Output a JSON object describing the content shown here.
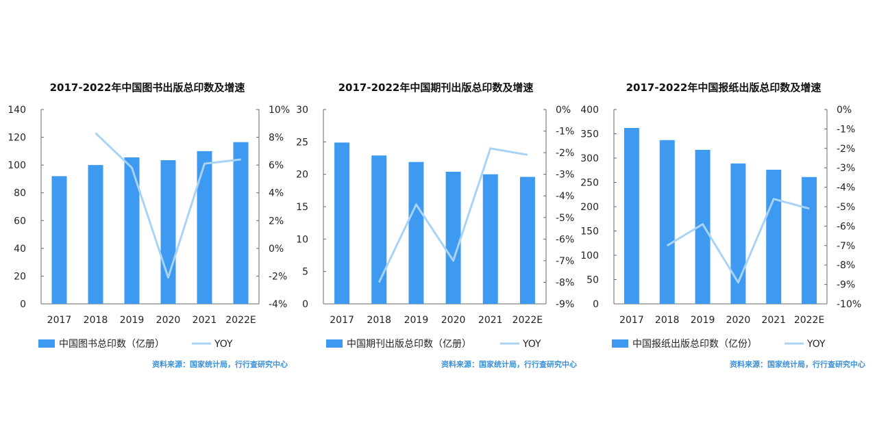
{
  "chart_data": [
    {
      "type": "bar+line",
      "title": "2017-2022年中国图书出版总印数及增速",
      "categories": [
        "2017",
        "2018",
        "2019",
        "2020",
        "2021",
        "2022E"
      ],
      "series": [
        {
          "name": "中国图书总印数（亿册）",
          "type": "bar",
          "axis": "left",
          "values": [
            92,
            100,
            105.5,
            103.5,
            110,
            116.5
          ]
        },
        {
          "name": "YOY",
          "type": "line",
          "axis": "right",
          "values": [
            null,
            8.3,
            5.8,
            -2.1,
            6.1,
            6.4
          ]
        }
      ],
      "y_left": {
        "ylim": [
          0,
          140
        ],
        "ticks": [
          "0",
          "20",
          "40",
          "60",
          "80",
          "100",
          "120",
          "140"
        ]
      },
      "y_right": {
        "ylim": [
          -4,
          10
        ],
        "ticks": [
          "-4%",
          "-2%",
          "0%",
          "2%",
          "4%",
          "6%",
          "8%",
          "10%"
        ]
      },
      "source": "资料来源：国家统计局，行行查研究中心",
      "legend_position": "bottom"
    },
    {
      "type": "bar+line",
      "title": "2017-2022年中国期刊出版总印数及增速",
      "categories": [
        "2017",
        "2018",
        "2019",
        "2020",
        "2021",
        "2022E"
      ],
      "series": [
        {
          "name": "中国期刊出版总印数（亿册）",
          "type": "bar",
          "axis": "left",
          "values": [
            24.9,
            22.9,
            21.9,
            20.4,
            20.0,
            19.6
          ]
        },
        {
          "name": "YOY",
          "type": "line",
          "axis": "right",
          "values": [
            null,
            -8.0,
            -4.4,
            -7.0,
            -1.8,
            -2.1
          ]
        }
      ],
      "y_left": {
        "ylim": [
          0,
          30
        ],
        "ticks": [
          "0",
          "5",
          "10",
          "15",
          "20",
          "25",
          "30"
        ]
      },
      "y_right": {
        "ylim": [
          -9,
          0
        ],
        "ticks": [
          "-9%",
          "-8%",
          "-7%",
          "-6%",
          "-5%",
          "-4%",
          "-3%",
          "-2%",
          "-1%",
          "0%"
        ]
      },
      "source": "资料来源：国家统计局，行行查研究中心",
      "legend_position": "bottom"
    },
    {
      "type": "bar+line",
      "title": "2017-2022年中国报纸出版总印数及增速",
      "categories": [
        "2017",
        "2018",
        "2019",
        "2020",
        "2021",
        "2022E"
      ],
      "series": [
        {
          "name": "中国报纸出版总印数（亿份）",
          "type": "bar",
          "axis": "left",
          "values": [
            362,
            337,
            317,
            289,
            276,
            261
          ]
        },
        {
          "name": "YOY",
          "type": "line",
          "axis": "right",
          "values": [
            null,
            -7.0,
            -5.9,
            -8.9,
            -4.6,
            -5.1
          ]
        }
      ],
      "y_left": {
        "ylim": [
          0,
          400
        ],
        "ticks": [
          "0",
          "50",
          "100",
          "150",
          "200",
          "250",
          "300",
          "350",
          "400"
        ]
      },
      "y_right": {
        "ylim": [
          -10,
          0
        ],
        "ticks": [
          "-10%",
          "-9%",
          "-8%",
          "-7%",
          "-6%",
          "-5%",
          "-4%",
          "-3%",
          "-2%",
          "-1%",
          "0%"
        ]
      },
      "source": "资料来源：国家统计局，行行查研究中心",
      "legend_position": "bottom"
    }
  ],
  "colors": {
    "bar": "#3d9af0",
    "line": "#a9d3f5",
    "axis": "#666666",
    "text": "#222222",
    "source": "#3a8fd9"
  }
}
